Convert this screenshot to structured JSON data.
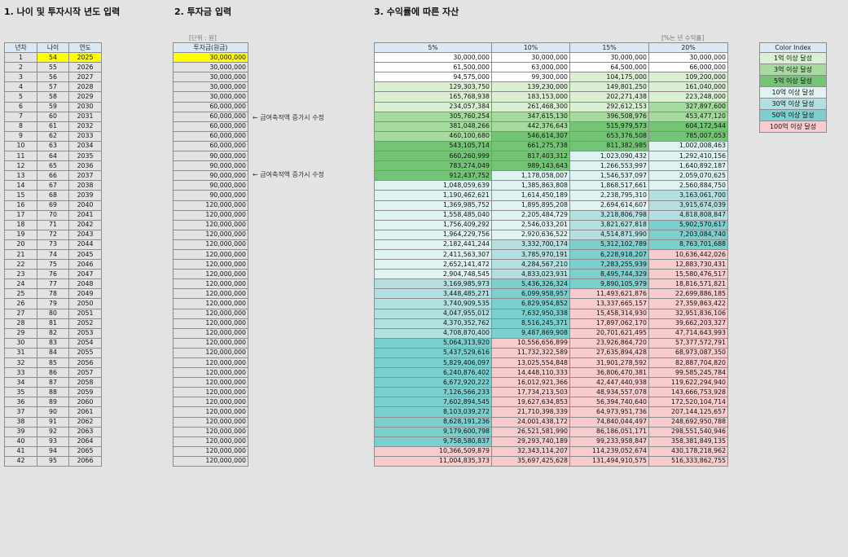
{
  "sections": {
    "s1": "1. 나이 및 투자시작 년도 입력",
    "s2": "2. 투자금 입력",
    "s3": "3. 수익률에 따른 자산"
  },
  "units": {
    "invest": "[단위 : 원]",
    "rate": "[%는 년 수익률]"
  },
  "notes": [
    "← 급여축적액 증가시 수정",
    "← 급여축적액 증가시 수정"
  ],
  "headers": {
    "left": [
      "년차",
      "나이",
      "연도"
    ],
    "invest": "투자금(원금)",
    "rates": [
      "5%",
      "10%",
      "15%",
      "20%"
    ]
  },
  "color_index": {
    "title": "Color Index",
    "items": [
      {
        "label": "1억 이상 달성",
        "color": "#d9f0d3"
      },
      {
        "label": "3억 이상 달성",
        "color": "#a6dba0"
      },
      {
        "label": "5억 이상 달성",
        "color": "#74c476"
      },
      {
        "label": "10억 이상 달성",
        "color": "#dff3f3"
      },
      {
        "label": "30억 이상 달성",
        "color": "#b2e0e0"
      },
      {
        "label": "50억 이상 달성",
        "color": "#7ccfcf"
      },
      {
        "label": "100억 이상 달성",
        "color": "#f8cccc"
      }
    ]
  },
  "rows": [
    [
      "1",
      "54",
      "2025",
      "30,000,000",
      "30,000,000",
      "30,000,000",
      "30,000,000",
      "30,000,000"
    ],
    [
      "2",
      "55",
      "2026",
      "30,000,000",
      "61,500,000",
      "63,000,000",
      "64,500,000",
      "66,000,000"
    ],
    [
      "3",
      "56",
      "2027",
      "30,000,000",
      "94,575,000",
      "99,300,000",
      "104,175,000",
      "109,200,000"
    ],
    [
      "4",
      "57",
      "2028",
      "30,000,000",
      "129,303,750",
      "139,230,000",
      "149,801,250",
      "161,040,000"
    ],
    [
      "5",
      "58",
      "2029",
      "30,000,000",
      "165,768,938",
      "183,153,000",
      "202,271,438",
      "223,248,000"
    ],
    [
      "6",
      "59",
      "2030",
      "60,000,000",
      "234,057,384",
      "261,468,300",
      "292,612,153",
      "327,897,600"
    ],
    [
      "7",
      "60",
      "2031",
      "60,000,000",
      "305,760,254",
      "347,615,130",
      "396,508,976",
      "453,477,120"
    ],
    [
      "8",
      "61",
      "2032",
      "60,000,000",
      "381,048,266",
      "442,376,643",
      "515,979,573",
      "604,172,544"
    ],
    [
      "9",
      "62",
      "2033",
      "60,000,000",
      "460,100,680",
      "546,614,307",
      "653,376,508",
      "785,007,053"
    ],
    [
      "10",
      "63",
      "2034",
      "60,000,000",
      "543,105,714",
      "661,275,738",
      "811,382,985",
      "1,002,008,463"
    ],
    [
      "11",
      "64",
      "2035",
      "90,000,000",
      "660,260,999",
      "817,403,312",
      "1,023,090,432",
      "1,292,410,156"
    ],
    [
      "12",
      "65",
      "2036",
      "90,000,000",
      "783,274,049",
      "989,143,643",
      "1,266,553,997",
      "1,640,892,187"
    ],
    [
      "13",
      "66",
      "2037",
      "90,000,000",
      "912,437,752",
      "1,178,058,007",
      "1,546,537,097",
      "2,059,070,625"
    ],
    [
      "14",
      "67",
      "2038",
      "90,000,000",
      "1,048,059,639",
      "1,385,863,808",
      "1,868,517,661",
      "2,560,884,750"
    ],
    [
      "15",
      "68",
      "2039",
      "90,000,000",
      "1,190,462,621",
      "1,614,450,189",
      "2,238,795,310",
      "3,163,061,700"
    ],
    [
      "16",
      "69",
      "2040",
      "120,000,000",
      "1,369,985,752",
      "1,895,895,208",
      "2,694,614,607",
      "3,915,674,039"
    ],
    [
      "17",
      "70",
      "2041",
      "120,000,000",
      "1,558,485,040",
      "2,205,484,729",
      "3,218,806,798",
      "4,818,808,847"
    ],
    [
      "18",
      "71",
      "2042",
      "120,000,000",
      "1,756,409,292",
      "2,546,033,201",
      "3,821,627,818",
      "5,902,570,617"
    ],
    [
      "19",
      "72",
      "2043",
      "120,000,000",
      "1,964,229,756",
      "2,920,636,522",
      "4,514,871,990",
      "7,203,084,740"
    ],
    [
      "20",
      "73",
      "2044",
      "120,000,000",
      "2,182,441,244",
      "3,332,700,174",
      "5,312,102,789",
      "8,763,701,688"
    ],
    [
      "21",
      "74",
      "2045",
      "120,000,000",
      "2,411,563,307",
      "3,785,970,191",
      "6,228,918,207",
      "10,636,442,026"
    ],
    [
      "22",
      "75",
      "2046",
      "120,000,000",
      "2,652,141,472",
      "4,284,567,210",
      "7,283,255,939",
      "12,883,730,431"
    ],
    [
      "23",
      "76",
      "2047",
      "120,000,000",
      "2,904,748,545",
      "4,833,023,931",
      "8,495,744,329",
      "15,580,476,517"
    ],
    [
      "24",
      "77",
      "2048",
      "120,000,000",
      "3,169,985,973",
      "5,436,326,324",
      "9,890,105,979",
      "18,816,571,821"
    ],
    [
      "25",
      "78",
      "2049",
      "120,000,000",
      "3,448,485,271",
      "6,099,958,957",
      "11,493,621,876",
      "22,699,886,185"
    ],
    [
      "26",
      "79",
      "2050",
      "120,000,000",
      "3,740,909,535",
      "6,829,954,852",
      "13,337,665,157",
      "27,359,863,422"
    ],
    [
      "27",
      "80",
      "2051",
      "120,000,000",
      "4,047,955,012",
      "7,632,950,338",
      "15,458,314,930",
      "32,951,836,106"
    ],
    [
      "28",
      "81",
      "2052",
      "120,000,000",
      "4,370,352,762",
      "8,516,245,371",
      "17,897,062,170",
      "39,662,203,327"
    ],
    [
      "29",
      "82",
      "2053",
      "120,000,000",
      "4,708,870,400",
      "9,487,869,908",
      "20,701,621,495",
      "47,714,643,993"
    ],
    [
      "30",
      "83",
      "2054",
      "120,000,000",
      "5,064,313,920",
      "10,556,656,899",
      "23,926,864,720",
      "57,377,572,791"
    ],
    [
      "31",
      "84",
      "2055",
      "120,000,000",
      "5,437,529,616",
      "11,732,322,589",
      "27,635,894,428",
      "68,973,087,350"
    ],
    [
      "32",
      "85",
      "2056",
      "120,000,000",
      "5,829,406,097",
      "13,025,554,848",
      "31,901,278,592",
      "82,887,704,820"
    ],
    [
      "33",
      "86",
      "2057",
      "120,000,000",
      "6,240,876,402",
      "14,448,110,333",
      "36,806,470,381",
      "99,585,245,784"
    ],
    [
      "34",
      "87",
      "2058",
      "120,000,000",
      "6,672,920,222",
      "16,012,921,366",
      "42,447,440,938",
      "119,622,294,940"
    ],
    [
      "35",
      "88",
      "2059",
      "120,000,000",
      "7,126,566,233",
      "17,734,213,503",
      "48,934,557,078",
      "143,666,753,928"
    ],
    [
      "36",
      "89",
      "2060",
      "120,000,000",
      "7,602,894,545",
      "19,627,634,853",
      "56,394,740,640",
      "172,520,104,714"
    ],
    [
      "37",
      "90",
      "2061",
      "120,000,000",
      "8,103,039,272",
      "21,710,398,339",
      "64,973,951,736",
      "207,144,125,657"
    ],
    [
      "38",
      "91",
      "2062",
      "120,000,000",
      "8,628,191,236",
      "24,001,438,172",
      "74,840,044,497",
      "248,692,950,788"
    ],
    [
      "39",
      "92",
      "2063",
      "120,000,000",
      "9,179,600,798",
      "26,521,581,990",
      "86,186,051,171",
      "298,551,540,946"
    ],
    [
      "40",
      "93",
      "2064",
      "120,000,000",
      "9,758,580,837",
      "29,293,740,189",
      "99,233,958,847",
      "358,381,849,135"
    ],
    [
      "41",
      "94",
      "2065",
      "120,000,000",
      "10,366,509,879",
      "32,343,114,207",
      "114,239,052,674",
      "430,178,218,962"
    ],
    [
      "42",
      "95",
      "2066",
      "120,000,000",
      "11,004,835,373",
      "35,697,425,628",
      "131,494,910,575",
      "516,333,862,755"
    ]
  ]
}
